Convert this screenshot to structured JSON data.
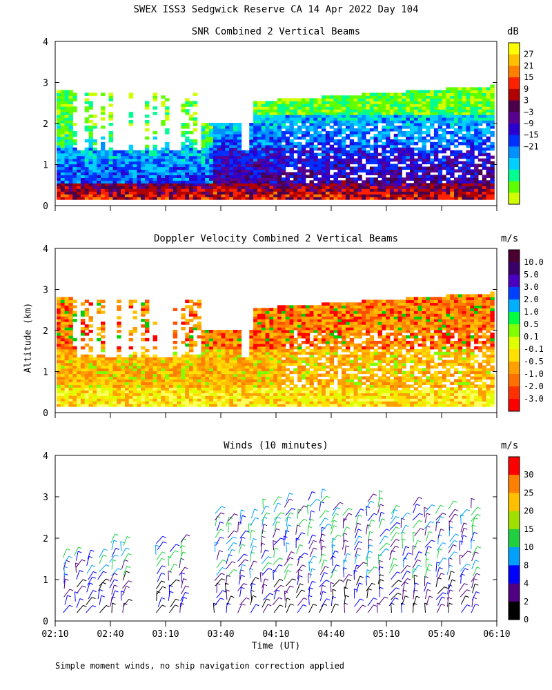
{
  "figure": {
    "title": "SWEX ISS3 Sedgwick Reserve CA  14 Apr 2022 Day 104",
    "ylabel": "Altitude (km)",
    "xlabel": "Time (UT)",
    "footnote": "Simple moment winds, no ship navigation correction applied"
  },
  "chart_data": [
    {
      "type": "heatmap",
      "title": "SNR Combined 2 Vertical Beams",
      "colorbar_unit": "dB",
      "colorbar_ticks": [
        "27",
        "21",
        "15",
        "9",
        "3",
        "−3",
        "−9",
        "−15",
        "−21"
      ],
      "colorbar_colors": [
        "#ffff00",
        "#ffc000",
        "#ff8000",
        "#ff2000",
        "#b00000",
        "#4a004a",
        "#5a0090",
        "#2a00d0",
        "#0030ff",
        "#0090ff",
        "#00d0ff",
        "#00ff90",
        "#60ff00",
        "#d0ff00"
      ],
      "x_ticks": [
        "02:10",
        "02:40",
        "03:10",
        "03:40",
        "04:10",
        "04:40",
        "05:10",
        "05:40",
        "06:10"
      ],
      "y_ticks": [
        "0",
        "1",
        "2",
        "3",
        "4"
      ],
      "ylim": [
        0,
        4
      ],
      "xlim": [
        "02:10",
        "06:10"
      ]
    },
    {
      "type": "heatmap",
      "title": "Doppler Velocity Combined 2 Vertical Beams",
      "colorbar_unit": "m/s",
      "colorbar_ticks": [
        "10.0",
        "5.0",
        "3.0",
        "2.0",
        "1.0",
        "0.5",
        "0.1",
        "-0.1",
        "-0.5",
        "-1.0",
        "-2.0",
        "-3.0"
      ],
      "colorbar_colors": [
        "#4a0030",
        "#3a006a",
        "#4a00c0",
        "#0040ff",
        "#00b0ff",
        "#00ff40",
        "#80ff00",
        "#e0ff00",
        "#ffe000",
        "#ffa000",
        "#ff7000",
        "#ff3000",
        "#ff0000"
      ],
      "x_ticks": [
        "02:10",
        "02:40",
        "03:10",
        "03:40",
        "04:10",
        "04:40",
        "05:10",
        "05:40",
        "06:10"
      ],
      "y_ticks": [
        "0",
        "1",
        "2",
        "3",
        "4"
      ],
      "ylim": [
        0,
        4
      ],
      "xlim": [
        "02:10",
        "06:10"
      ]
    },
    {
      "type": "scatter",
      "title": "Winds (10 minutes)",
      "colorbar_unit": "m/s",
      "colorbar_ticks": [
        "30",
        "25",
        "20",
        "15",
        "10",
        "8",
        "4",
        "2",
        "0"
      ],
      "colorbar_colors": [
        "#ff0000",
        "#ff8000",
        "#ffc000",
        "#a0e000",
        "#20d040",
        "#00a0ff",
        "#0000ff",
        "#500080",
        "#000000"
      ],
      "x_ticks": [
        "02:10",
        "02:40",
        "03:10",
        "03:40",
        "04:10",
        "04:40",
        "05:10",
        "05:40",
        "06:10"
      ],
      "y_ticks": [
        "0",
        "1",
        "2",
        "3",
        "4"
      ],
      "ylim": [
        0,
        4
      ],
      "xlim": [
        "02:10",
        "06:10"
      ]
    }
  ]
}
